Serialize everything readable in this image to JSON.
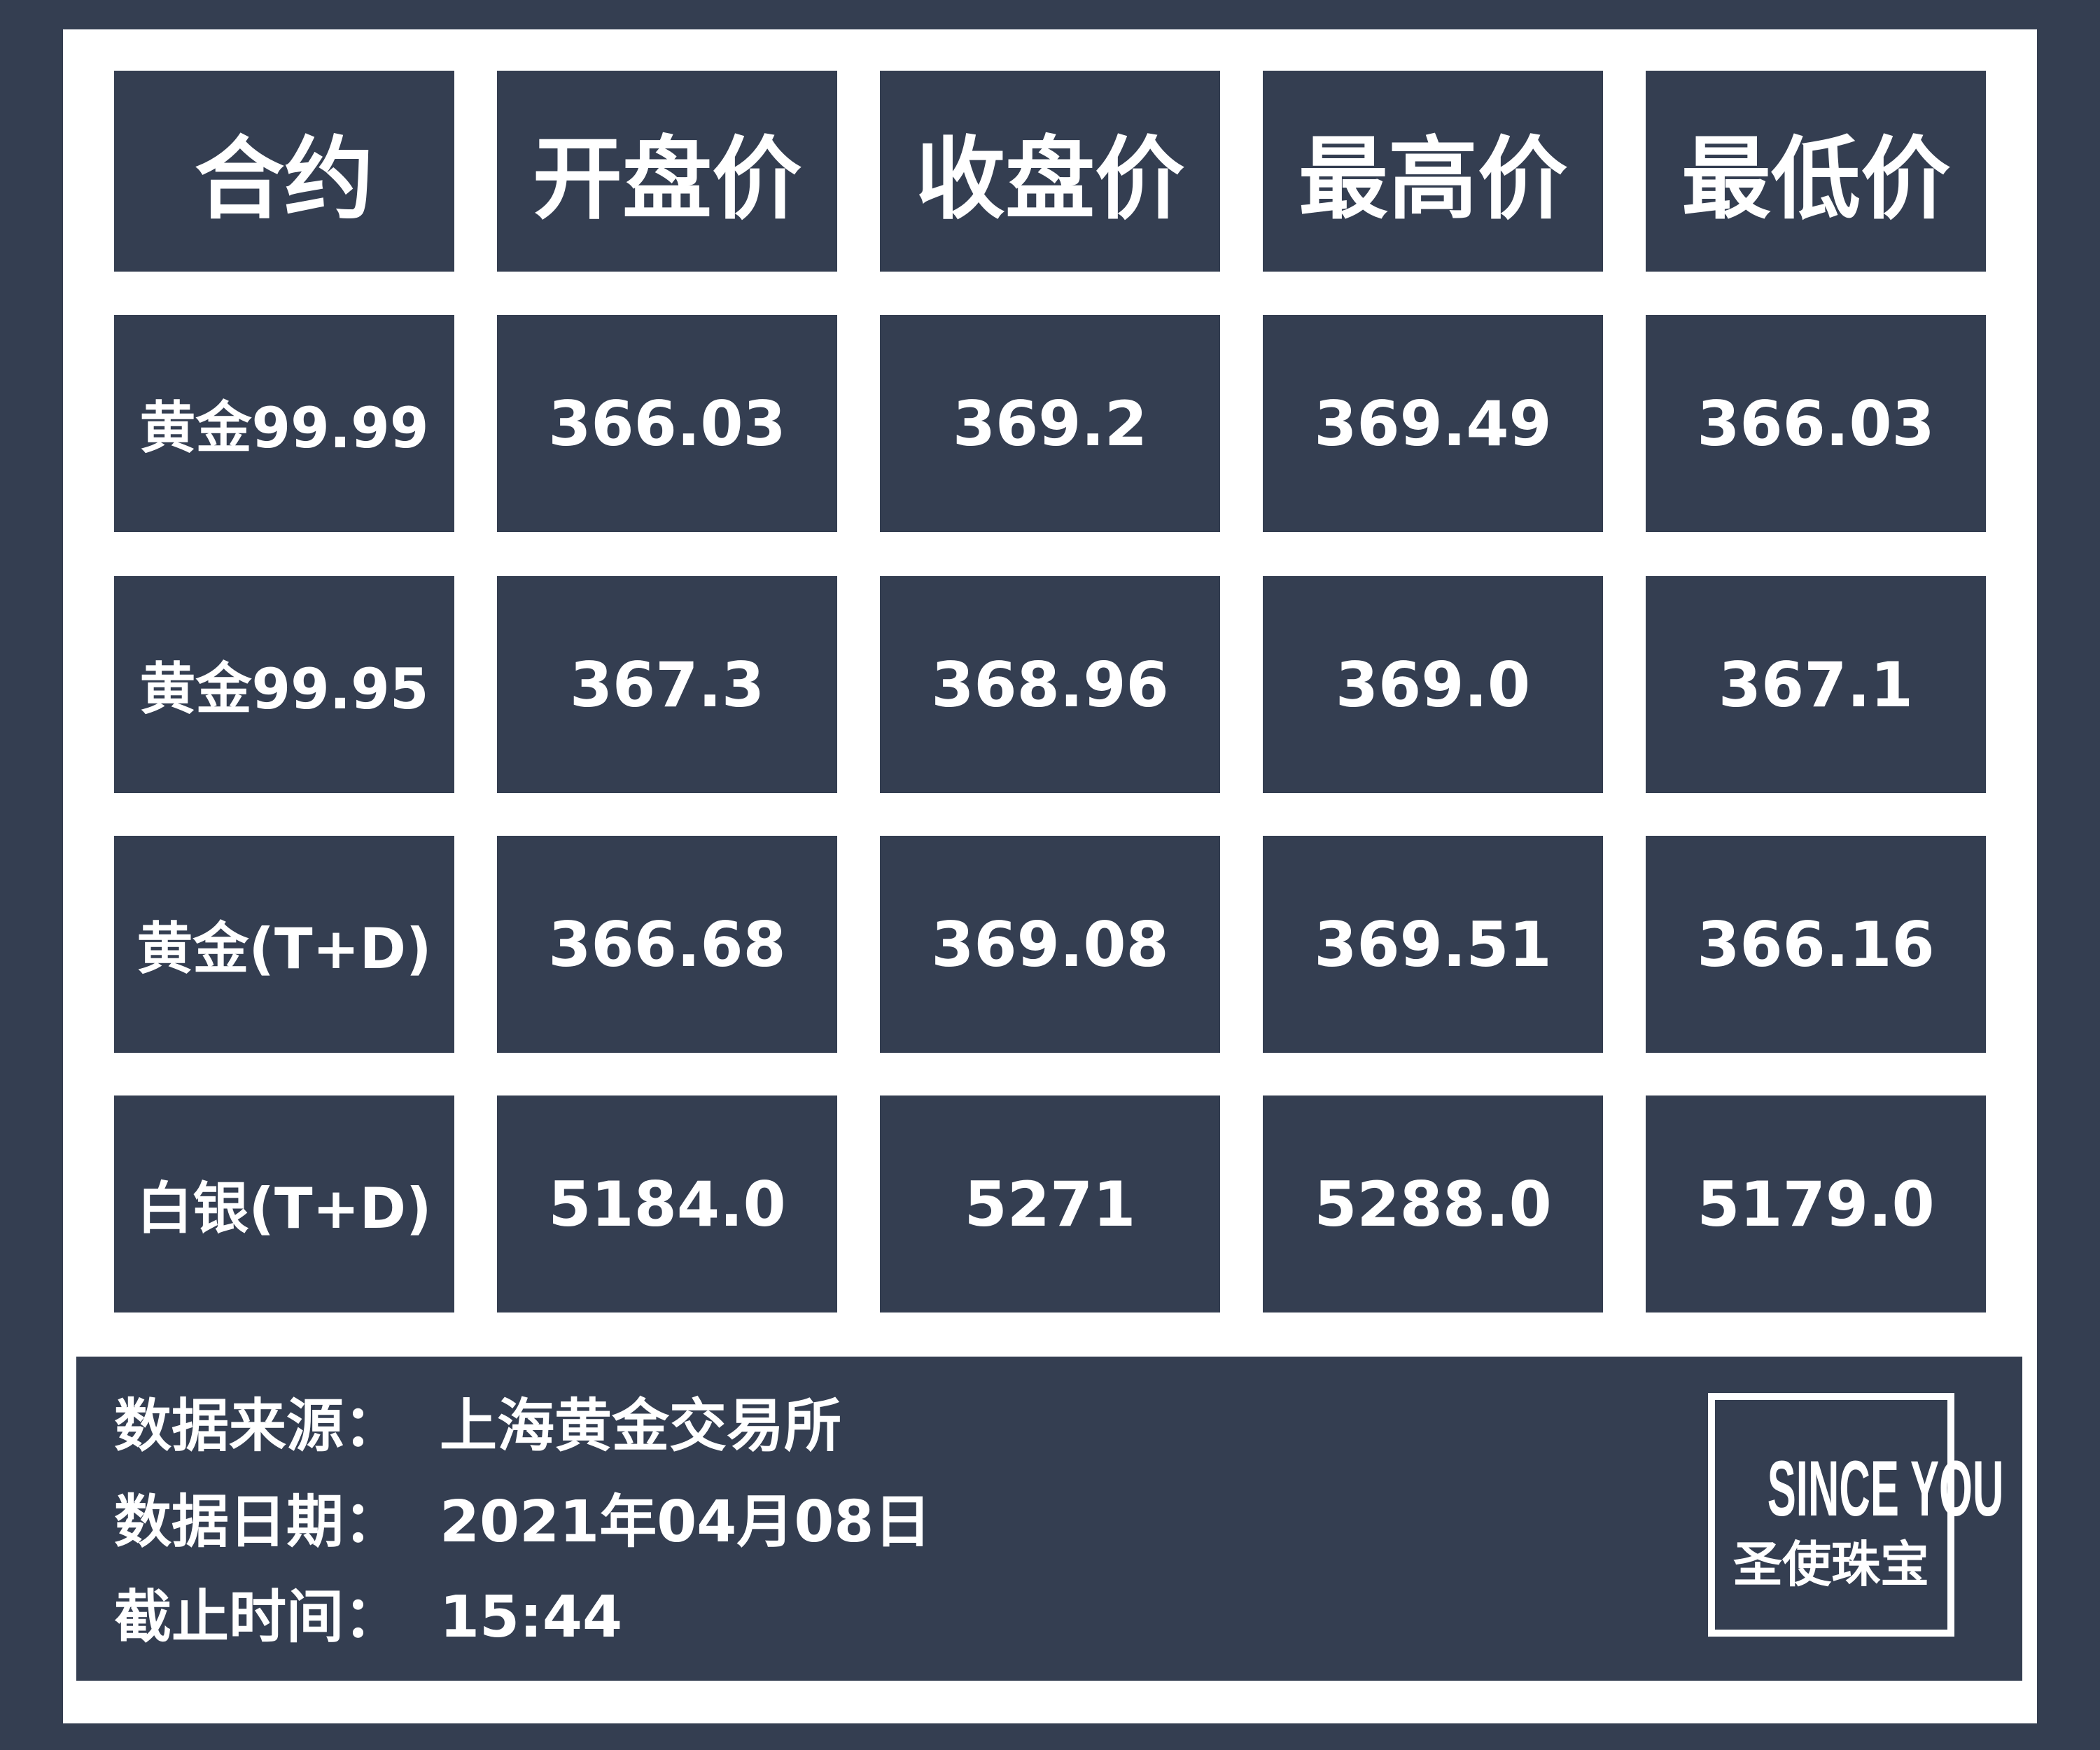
{
  "header": {
    "columns": [
      "合约",
      "开盘价",
      "收盘价",
      "最高价",
      "最低价"
    ]
  },
  "table": {
    "rows": [
      [
        "黄金99.99",
        "366.03",
        "369.2",
        "369.49",
        "366.03"
      ],
      [
        "黄金99.95",
        "367.3",
        "368.96",
        "369.0",
        "367.1"
      ],
      [
        "黄金(T+D)",
        "366.68",
        "369.08",
        "369.51",
        "366.16"
      ],
      [
        "白银(T+D)",
        "5184.0",
        "5271",
        "5288.0",
        "5179.0"
      ]
    ]
  },
  "footer": {
    "lines": [
      {
        "label": "数据来源：",
        "value": "上海黄金交易所"
      },
      {
        "label": "数据日期：",
        "value": "2021年04月08日"
      },
      {
        "label": "截止时间：",
        "value": "15:44"
      }
    ]
  },
  "logo": {
    "brand": "SINCE YOU",
    "name": "圣使珠宝"
  }
}
